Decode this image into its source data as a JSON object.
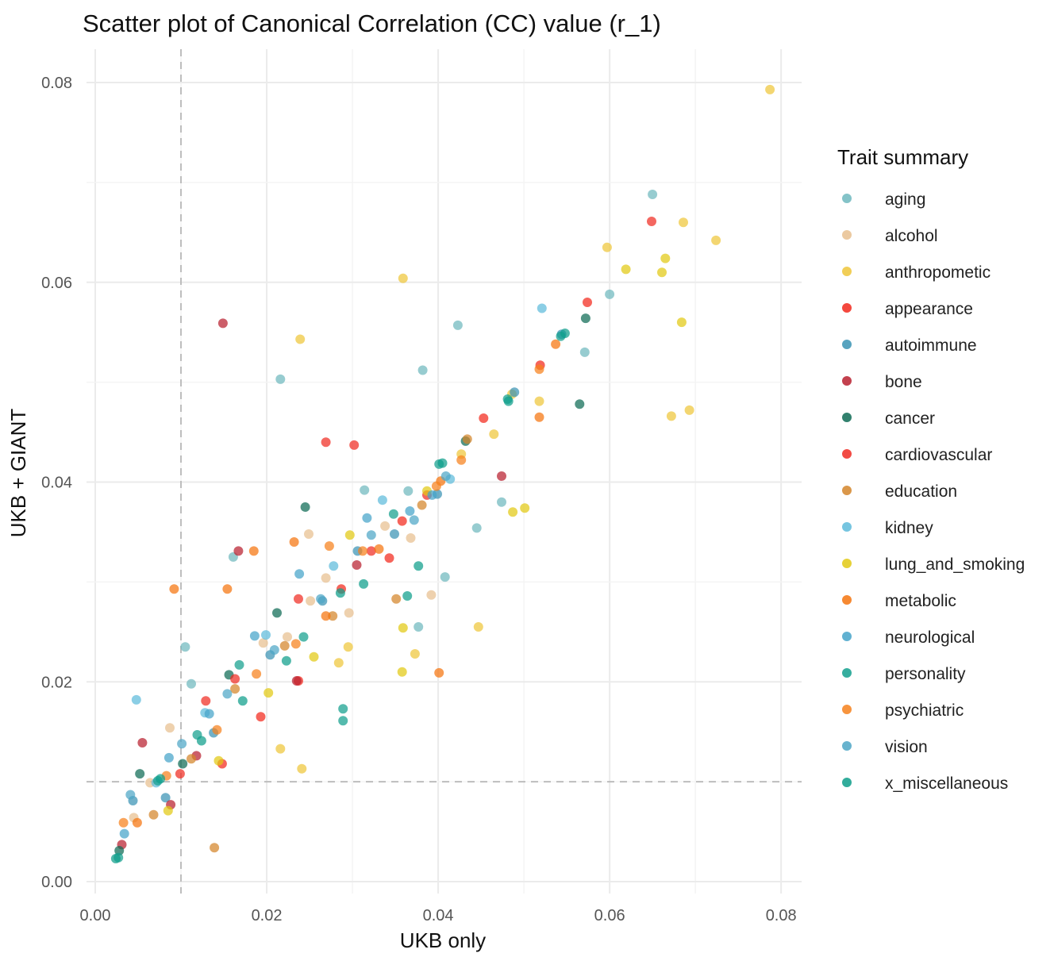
{
  "chart_data": {
    "type": "scatter",
    "title": "Scatter plot of Canonical Correlation (CC) value (r_1)",
    "xlabel": "UKB only",
    "ylabel": "UKB + GIANT",
    "xlim": [
      -0.001,
      0.0825
    ],
    "ylim": [
      -0.0015,
      0.0835
    ],
    "x_ticks": [
      0.0,
      0.02,
      0.04,
      0.06,
      0.08
    ],
    "x_tick_labels": [
      "0.00",
      "0.02",
      "0.04",
      "0.06",
      "0.08"
    ],
    "y_ticks": [
      0.0,
      0.02,
      0.04,
      0.06,
      0.08
    ],
    "y_tick_labels": [
      "0.00",
      "0.02",
      "0.04",
      "0.06",
      "0.08"
    ],
    "reference_lines": [
      {
        "orientation": "vertical",
        "value": 0.01,
        "style": "dashed"
      },
      {
        "orientation": "horizontal",
        "value": 0.01,
        "style": "dashed"
      }
    ],
    "grid": true,
    "legend": {
      "title": "Trait summary",
      "placement": "right"
    },
    "series": [
      {
        "name": "aging",
        "color": "#6FB8BE",
        "points": [
          [
            0.065,
            0.0688
          ],
          [
            0.0423,
            0.0557
          ],
          [
            0.0382,
            0.0512
          ],
          [
            0.06,
            0.0588
          ],
          [
            0.0571,
            0.053
          ],
          [
            0.0474,
            0.038
          ],
          [
            0.0445,
            0.0354
          ],
          [
            0.0408,
            0.0305
          ],
          [
            0.0377,
            0.0255
          ],
          [
            0.0365,
            0.0391
          ],
          [
            0.0314,
            0.0392
          ],
          [
            0.0216,
            0.0503
          ],
          [
            0.0161,
            0.0325
          ],
          [
            0.0112,
            0.0198
          ],
          [
            0.0105,
            0.0235
          ]
        ]
      },
      {
        "name": "alcohol",
        "color": "#E7BF8F",
        "points": [
          [
            0.0368,
            0.0344
          ],
          [
            0.0392,
            0.0287
          ],
          [
            0.0338,
            0.0356
          ],
          [
            0.0269,
            0.0304
          ],
          [
            0.0249,
            0.0348
          ],
          [
            0.0251,
            0.0281
          ],
          [
            0.0196,
            0.0239
          ],
          [
            0.0087,
            0.0154
          ],
          [
            0.0064,
            0.0099
          ],
          [
            0.0045,
            0.0064
          ],
          [
            0.0296,
            0.0269
          ],
          [
            0.0224,
            0.0245
          ]
        ]
      },
      {
        "name": "anthropometic",
        "color": "#EEC63A",
        "points": [
          [
            0.0787,
            0.0793
          ],
          [
            0.0724,
            0.0642
          ],
          [
            0.0686,
            0.066
          ],
          [
            0.0597,
            0.0635
          ],
          [
            0.0693,
            0.0472
          ],
          [
            0.0672,
            0.0466
          ],
          [
            0.0518,
            0.0481
          ],
          [
            0.0486,
            0.0488
          ],
          [
            0.0359,
            0.0604
          ],
          [
            0.0239,
            0.0543
          ],
          [
            0.0447,
            0.0255
          ],
          [
            0.0373,
            0.0228
          ],
          [
            0.0241,
            0.0113
          ],
          [
            0.0295,
            0.0235
          ],
          [
            0.0465,
            0.0448
          ],
          [
            0.0427,
            0.0428
          ],
          [
            0.0216,
            0.0133
          ],
          [
            0.0284,
            0.0219
          ]
        ]
      },
      {
        "name": "appearance",
        "color": "#F2281C",
        "points": [
          [
            0.0574,
            0.058
          ],
          [
            0.0519,
            0.0517
          ],
          [
            0.0453,
            0.0464
          ],
          [
            0.0358,
            0.0361
          ],
          [
            0.0343,
            0.0324
          ],
          [
            0.0287,
            0.0293
          ],
          [
            0.0237,
            0.0201
          ],
          [
            0.0193,
            0.0165
          ],
          [
            0.0148,
            0.0118
          ]
        ]
      },
      {
        "name": "autoimmune",
        "color": "#3A93B4",
        "points": [
          [
            0.0544,
            0.0548
          ],
          [
            0.0489,
            0.049
          ],
          [
            0.0399,
            0.0388
          ],
          [
            0.0349,
            0.0348
          ],
          [
            0.0306,
            0.0331
          ],
          [
            0.0265,
            0.0281
          ],
          [
            0.0204,
            0.0227
          ],
          [
            0.0138,
            0.0149
          ],
          [
            0.0082,
            0.0084
          ],
          [
            0.0044,
            0.0081
          ]
        ]
      },
      {
        "name": "bone",
        "color": "#B8202F",
        "points": [
          [
            0.0149,
            0.0559
          ],
          [
            0.0474,
            0.0406
          ],
          [
            0.0167,
            0.0331
          ],
          [
            0.0305,
            0.0317
          ],
          [
            0.0235,
            0.0201
          ],
          [
            0.0118,
            0.0126
          ],
          [
            0.0055,
            0.0139
          ],
          [
            0.0031,
            0.0037
          ],
          [
            0.0088,
            0.0077
          ]
        ]
      },
      {
        "name": "cancer",
        "color": "#0E6B55",
        "points": [
          [
            0.0572,
            0.0564
          ],
          [
            0.0565,
            0.0478
          ],
          [
            0.0432,
            0.0441
          ],
          [
            0.0245,
            0.0375
          ],
          [
            0.0212,
            0.0269
          ],
          [
            0.0156,
            0.0207
          ],
          [
            0.0102,
            0.0118
          ],
          [
            0.0052,
            0.0108
          ],
          [
            0.0028,
            0.0031
          ]
        ]
      },
      {
        "name": "cardiovascular",
        "color": "#F02C23",
        "points": [
          [
            0.0649,
            0.0661
          ],
          [
            0.0269,
            0.044
          ],
          [
            0.0302,
            0.0437
          ],
          [
            0.0387,
            0.0387
          ],
          [
            0.0322,
            0.0331
          ],
          [
            0.0237,
            0.0283
          ],
          [
            0.0163,
            0.0203
          ],
          [
            0.0129,
            0.0181
          ],
          [
            0.0099,
            0.0108
          ]
        ]
      },
      {
        "name": "education",
        "color": "#D4852A",
        "points": [
          [
            0.0434,
            0.0443
          ],
          [
            0.0381,
            0.0377
          ],
          [
            0.0351,
            0.0283
          ],
          [
            0.0277,
            0.0266
          ],
          [
            0.0221,
            0.0236
          ],
          [
            0.0163,
            0.0193
          ],
          [
            0.0139,
            0.0034
          ],
          [
            0.0112,
            0.0123
          ],
          [
            0.0068,
            0.0067
          ]
        ]
      },
      {
        "name": "kidney",
        "color": "#5EBBDB",
        "points": [
          [
            0.0521,
            0.0574
          ],
          [
            0.0414,
            0.0403
          ],
          [
            0.0335,
            0.0382
          ],
          [
            0.0278,
            0.0316
          ],
          [
            0.0199,
            0.0247
          ],
          [
            0.0128,
            0.0169
          ],
          [
            0.0048,
            0.0182
          ],
          [
            0.0071,
            0.0099
          ]
        ]
      },
      {
        "name": "lung_and_smoking",
        "color": "#E2C914",
        "points": [
          [
            0.0665,
            0.0624
          ],
          [
            0.0684,
            0.056
          ],
          [
            0.0661,
            0.061
          ],
          [
            0.0619,
            0.0613
          ],
          [
            0.0501,
            0.0374
          ],
          [
            0.0487,
            0.037
          ],
          [
            0.0387,
            0.0391
          ],
          [
            0.0359,
            0.0254
          ],
          [
            0.0358,
            0.021
          ],
          [
            0.0297,
            0.0347
          ],
          [
            0.0255,
            0.0225
          ],
          [
            0.0202,
            0.0189
          ],
          [
            0.0144,
            0.0121
          ],
          [
            0.0085,
            0.0071
          ]
        ]
      },
      {
        "name": "metabolic",
        "color": "#F5740E",
        "points": [
          [
            0.0537,
            0.0538
          ],
          [
            0.0518,
            0.0465
          ],
          [
            0.0401,
            0.0209
          ],
          [
            0.0403,
            0.0401
          ],
          [
            0.0331,
            0.0333
          ],
          [
            0.0269,
            0.0266
          ],
          [
            0.0232,
            0.034
          ],
          [
            0.0185,
            0.0331
          ],
          [
            0.0154,
            0.0293
          ],
          [
            0.0092,
            0.0293
          ],
          [
            0.0049,
            0.0059
          ]
        ]
      },
      {
        "name": "neurological",
        "color": "#45A3C9",
        "points": [
          [
            0.0393,
            0.0387
          ],
          [
            0.0367,
            0.0371
          ],
          [
            0.0317,
            0.0364
          ],
          [
            0.0238,
            0.0308
          ],
          [
            0.0186,
            0.0246
          ],
          [
            0.0133,
            0.0168
          ],
          [
            0.0086,
            0.0124
          ],
          [
            0.0034,
            0.0048
          ]
        ]
      },
      {
        "name": "personality",
        "color": "#13A08E",
        "points": [
          [
            0.0543,
            0.0546
          ],
          [
            0.0481,
            0.0483
          ],
          [
            0.0401,
            0.0418
          ],
          [
            0.0348,
            0.0368
          ],
          [
            0.0289,
            0.0173
          ],
          [
            0.0289,
            0.0161
          ],
          [
            0.0243,
            0.0245
          ],
          [
            0.0168,
            0.0217
          ],
          [
            0.0119,
            0.0147
          ],
          [
            0.0073,
            0.0101
          ],
          [
            0.0027,
            0.0024
          ]
        ]
      },
      {
        "name": "psychiatric",
        "color": "#F6811C",
        "points": [
          [
            0.0518,
            0.0513
          ],
          [
            0.0427,
            0.0422
          ],
          [
            0.0398,
            0.0396
          ],
          [
            0.0312,
            0.0331
          ],
          [
            0.0273,
            0.0336
          ],
          [
            0.0234,
            0.0238
          ],
          [
            0.0188,
            0.0208
          ],
          [
            0.0142,
            0.0152
          ],
          [
            0.0083,
            0.0106
          ],
          [
            0.0033,
            0.0059
          ]
        ]
      },
      {
        "name": "vision",
        "color": "#4DA6C6",
        "points": [
          [
            0.0409,
            0.0406
          ],
          [
            0.0372,
            0.0362
          ],
          [
            0.0322,
            0.0347
          ],
          [
            0.0263,
            0.0283
          ],
          [
            0.0209,
            0.0232
          ],
          [
            0.0154,
            0.0188
          ],
          [
            0.0101,
            0.0138
          ],
          [
            0.0041,
            0.0087
          ]
        ]
      },
      {
        "name": "x_miscellaneous",
        "color": "#0E9E8A",
        "points": [
          [
            0.0548,
            0.0549
          ],
          [
            0.0482,
            0.0481
          ],
          [
            0.0405,
            0.0419
          ],
          [
            0.0377,
            0.0316
          ],
          [
            0.0364,
            0.0286
          ],
          [
            0.0313,
            0.0298
          ],
          [
            0.0286,
            0.0289
          ],
          [
            0.0223,
            0.0221
          ],
          [
            0.0172,
            0.0181
          ],
          [
            0.0124,
            0.0141
          ],
          [
            0.0076,
            0.0103
          ],
          [
            0.0024,
            0.0023
          ]
        ]
      }
    ]
  }
}
